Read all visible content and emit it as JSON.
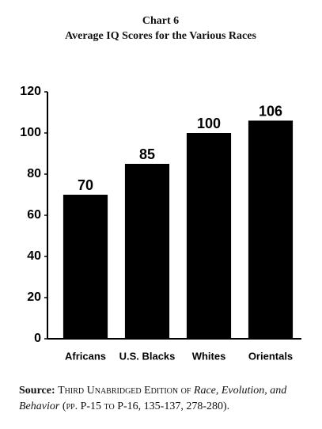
{
  "chart_data": {
    "type": "bar",
    "title": "Chart 6",
    "subtitle": "Average IQ Scores for the Various Races",
    "categories": [
      "Africans",
      "U.S. Blacks",
      "Whites",
      "Orientals"
    ],
    "values": [
      70,
      85,
      100,
      106
    ],
    "color": "#000000",
    "ylim": [
      0,
      120
    ],
    "yticks": [
      0,
      20,
      40,
      60,
      80,
      100,
      120
    ],
    "grid": false,
    "source": {
      "label": "Source:",
      "parts": [
        "Third Unabridged Edition of ",
        "Race, Evolution, and Behavior",
        " (pp. P-15 to P-16, 135-137, 278-280)."
      ]
    }
  }
}
